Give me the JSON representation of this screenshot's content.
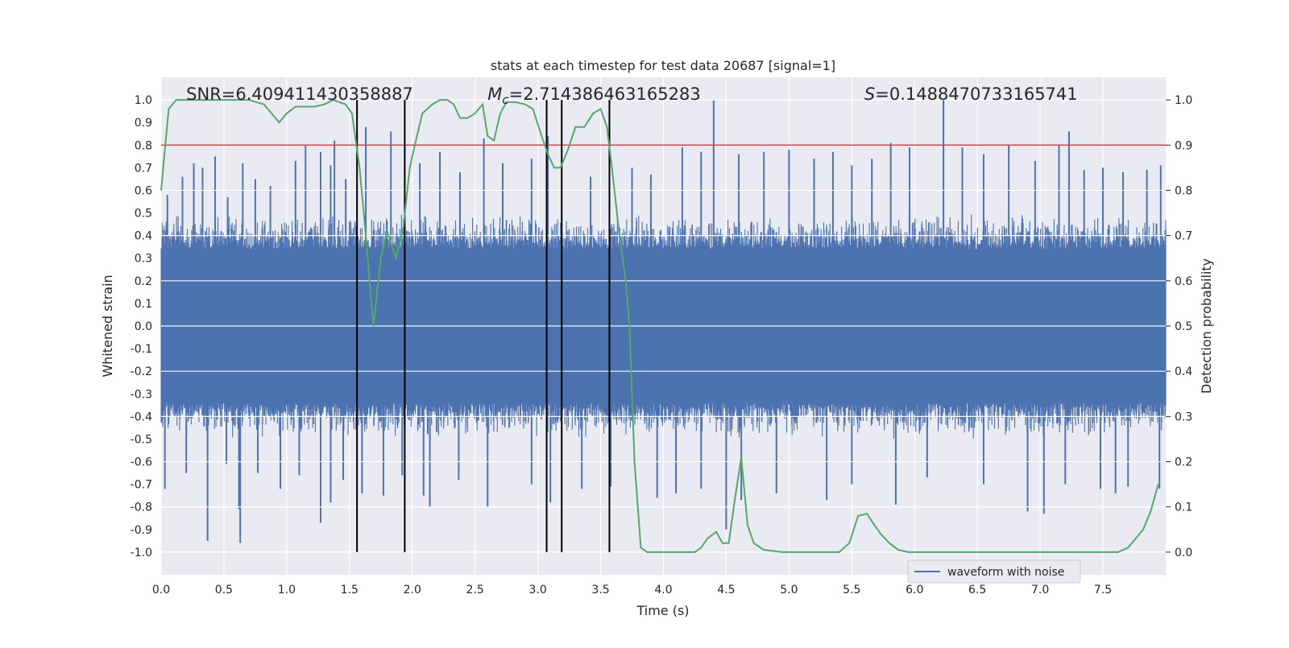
{
  "chart_data": {
    "type": "line",
    "title": "stats at each timestep for test data 20687 [signal=1]",
    "xlabel": "Time (s)",
    "ylabel_left": "Whitened strain",
    "ylabel_right": "Detection probability",
    "xlim": [
      0.0,
      8.0
    ],
    "ylim_left": [
      -1.1,
      1.1
    ],
    "ylim_right": [
      -0.05,
      1.05
    ],
    "xticks": [
      0.0,
      0.5,
      1.0,
      1.5,
      2.0,
      2.5,
      3.0,
      3.5,
      4.0,
      4.5,
      5.0,
      5.5,
      6.0,
      6.5,
      7.0,
      7.5
    ],
    "xtick_labels": [
      "0.0",
      "0.5",
      "1.0",
      "1.5",
      "2.0",
      "2.5",
      "3.0",
      "3.5",
      "4.0",
      "4.5",
      "5.0",
      "5.5",
      "6.0",
      "6.5",
      "7.0",
      "7.5"
    ],
    "yticks_left": [
      -1.0,
      -0.9,
      -0.8,
      -0.7,
      -0.6,
      -0.5,
      -0.4,
      -0.3,
      -0.2,
      -0.1,
      0.0,
      0.1,
      0.2,
      0.3,
      0.4,
      0.5,
      0.6,
      0.7,
      0.8,
      0.9,
      1.0
    ],
    "ytick_labels_left": [
      "-1.0",
      "-0.9",
      "-0.8",
      "-0.7",
      "-0.6",
      "-0.5",
      "-0.4",
      "-0.3",
      "-0.2",
      "-0.1",
      "0.0",
      "0.1",
      "0.2",
      "0.3",
      "0.4",
      "0.5",
      "0.6",
      "0.7",
      "0.8",
      "0.9",
      "1.0"
    ],
    "yticks_right": [
      0.0,
      0.1,
      0.2,
      0.3,
      0.4,
      0.5,
      0.6,
      0.7,
      0.8,
      0.9,
      1.0
    ],
    "ytick_labels_right": [
      "0.0",
      "0.1",
      "0.2",
      "0.3",
      "0.4",
      "0.5",
      "0.6",
      "0.7",
      "0.8",
      "0.9",
      "1.0"
    ],
    "grid": true,
    "annotations": [
      {
        "text": "SNR=6.409411430358887",
        "x": 0.2
      },
      {
        "text": "M_c=2.714386463165283",
        "x": 2.6
      },
      {
        "text": "S=0.1488470733165741",
        "x": 5.6
      }
    ],
    "threshold": {
      "axis": "right",
      "value": 0.9,
      "color": "#c44e52"
    },
    "vertical_markers": [
      1.56,
      1.94,
      3.07,
      3.19,
      3.57
    ],
    "marker_color": "#000000",
    "legend": {
      "entries": [
        "waveform with noise"
      ],
      "placement": "lower-right"
    },
    "series": [
      {
        "name": "waveform with noise",
        "axis": "left",
        "color": "#4c72b0",
        "core_amplitude": 0.4,
        "peak_spikes_positive": [
          [
            0.05,
            0.58
          ],
          [
            0.17,
            0.66
          ],
          [
            0.26,
            0.72
          ],
          [
            0.33,
            0.7
          ],
          [
            0.43,
            0.75
          ],
          [
            0.53,
            0.57
          ],
          [
            0.65,
            0.72
          ],
          [
            0.75,
            0.65
          ],
          [
            0.87,
            0.62
          ],
          [
            1.07,
            0.73
          ],
          [
            1.15,
            0.8
          ],
          [
            1.27,
            0.77
          ],
          [
            1.35,
            0.71
          ],
          [
            1.38,
            0.82
          ],
          [
            1.47,
            0.65
          ],
          [
            1.63,
            0.88
          ],
          [
            1.83,
            0.86
          ],
          [
            2.06,
            0.72
          ],
          [
            2.22,
            0.77
          ],
          [
            2.38,
            0.68
          ],
          [
            2.57,
            0.83
          ],
          [
            2.72,
            0.72
          ],
          [
            2.95,
            0.74
          ],
          [
            3.08,
            0.84
          ],
          [
            3.42,
            0.66
          ],
          [
            3.75,
            0.7
          ],
          [
            3.9,
            0.67
          ],
          [
            4.15,
            0.79
          ],
          [
            4.3,
            0.77
          ],
          [
            4.4,
            1.0
          ],
          [
            4.6,
            0.76
          ],
          [
            4.8,
            0.77
          ],
          [
            5.0,
            0.78
          ],
          [
            5.2,
            0.74
          ],
          [
            5.35,
            0.77
          ],
          [
            5.5,
            0.71
          ],
          [
            5.66,
            0.74
          ],
          [
            5.81,
            0.81
          ],
          [
            5.96,
            0.79
          ],
          [
            6.23,
            1.0
          ],
          [
            6.38,
            0.79
          ],
          [
            6.55,
            0.76
          ],
          [
            6.75,
            0.8
          ],
          [
            6.96,
            0.73
          ],
          [
            7.15,
            0.8
          ],
          [
            7.23,
            0.86
          ],
          [
            7.35,
            0.69
          ],
          [
            7.5,
            0.7
          ],
          [
            7.66,
            0.68
          ],
          [
            7.85,
            0.69
          ],
          [
            7.96,
            0.71
          ]
        ],
        "peak_spikes_negative": [
          [
            0.03,
            -0.72
          ],
          [
            0.2,
            -0.65
          ],
          [
            0.37,
            -0.95
          ],
          [
            0.52,
            -0.61
          ],
          [
            0.62,
            -0.81
          ],
          [
            0.63,
            -0.96
          ],
          [
            0.77,
            -0.65
          ],
          [
            0.95,
            -0.72
          ],
          [
            1.1,
            -0.66
          ],
          [
            1.27,
            -0.87
          ],
          [
            1.35,
            -0.78
          ],
          [
            1.45,
            -0.68
          ],
          [
            1.6,
            -0.74
          ],
          [
            1.77,
            -0.75
          ],
          [
            1.92,
            -0.66
          ],
          [
            2.09,
            -0.75
          ],
          [
            2.14,
            -0.8
          ],
          [
            2.37,
            -0.68
          ],
          [
            2.6,
            -0.8
          ],
          [
            2.95,
            -0.7
          ],
          [
            3.1,
            -0.78
          ],
          [
            3.35,
            -0.72
          ],
          [
            3.58,
            -0.71
          ],
          [
            3.95,
            -0.76
          ],
          [
            4.1,
            -0.74
          ],
          [
            4.3,
            -0.72
          ],
          [
            4.5,
            -0.9
          ],
          [
            4.62,
            -0.77
          ],
          [
            4.9,
            -0.74
          ],
          [
            5.3,
            -0.77
          ],
          [
            5.5,
            -0.7
          ],
          [
            5.85,
            -0.79
          ],
          [
            6.1,
            -0.67
          ],
          [
            6.55,
            -0.7
          ],
          [
            6.9,
            -0.82
          ],
          [
            7.03,
            -0.83
          ],
          [
            7.2,
            -0.7
          ],
          [
            7.48,
            -0.72
          ],
          [
            7.6,
            -0.74
          ],
          [
            7.7,
            -0.71
          ],
          [
            7.95,
            -0.72
          ]
        ]
      },
      {
        "name": "",
        "axis": "right",
        "color": "#55a868",
        "x": [
          0.0,
          0.06,
          0.12,
          0.2,
          0.35,
          0.55,
          0.7,
          0.82,
          0.94,
          1.0,
          1.07,
          1.15,
          1.22,
          1.3,
          1.37,
          1.42,
          1.47,
          1.52,
          1.58,
          1.63,
          1.69,
          1.75,
          1.8,
          1.87,
          1.93,
          1.98,
          2.02,
          2.08,
          2.16,
          2.22,
          2.28,
          2.33,
          2.38,
          2.44,
          2.5,
          2.56,
          2.6,
          2.65,
          2.7,
          2.75,
          2.82,
          2.9,
          2.96,
          3.03,
          3.08,
          3.13,
          3.18,
          3.24,
          3.3,
          3.37,
          3.44,
          3.5,
          3.55,
          3.59,
          3.65,
          3.7,
          3.73,
          3.77,
          3.82,
          3.87,
          3.95,
          4.05,
          4.15,
          4.25,
          4.3,
          4.35,
          4.42,
          4.47,
          4.52,
          4.56,
          4.62,
          4.67,
          4.72,
          4.8,
          4.95,
          5.15,
          5.3,
          5.4,
          5.48,
          5.55,
          5.62,
          5.68,
          5.73,
          5.8,
          5.87,
          5.95,
          6.05,
          6.3,
          6.6,
          7.0,
          7.3,
          7.5,
          7.62,
          7.7,
          7.76,
          7.82,
          7.88,
          7.94
        ],
        "y": [
          0.8,
          0.98,
          1.0,
          1.0,
          1.0,
          1.0,
          1.0,
          0.99,
          0.95,
          0.97,
          0.985,
          0.985,
          0.985,
          0.99,
          1.0,
          0.995,
          0.99,
          0.97,
          0.85,
          0.7,
          0.5,
          0.65,
          0.71,
          0.65,
          0.72,
          0.85,
          0.9,
          0.97,
          0.99,
          1.0,
          1.0,
          0.99,
          0.96,
          0.96,
          0.97,
          0.99,
          0.92,
          0.91,
          0.97,
          0.995,
          0.995,
          0.99,
          0.98,
          0.92,
          0.88,
          0.85,
          0.85,
          0.89,
          0.94,
          0.94,
          0.97,
          0.98,
          0.94,
          0.85,
          0.7,
          0.6,
          0.5,
          0.2,
          0.01,
          0.0,
          0.0,
          0.0,
          0.0,
          0.0,
          0.01,
          0.03,
          0.045,
          0.02,
          0.02,
          0.1,
          0.21,
          0.06,
          0.02,
          0.005,
          0.0,
          0.0,
          0.0,
          0.0,
          0.02,
          0.08,
          0.085,
          0.06,
          0.04,
          0.02,
          0.005,
          0.0,
          0.0,
          0.0,
          0.0,
          0.0,
          0.0,
          0.0,
          0.0,
          0.01,
          0.03,
          0.05,
          0.09,
          0.15
        ]
      }
    ]
  }
}
